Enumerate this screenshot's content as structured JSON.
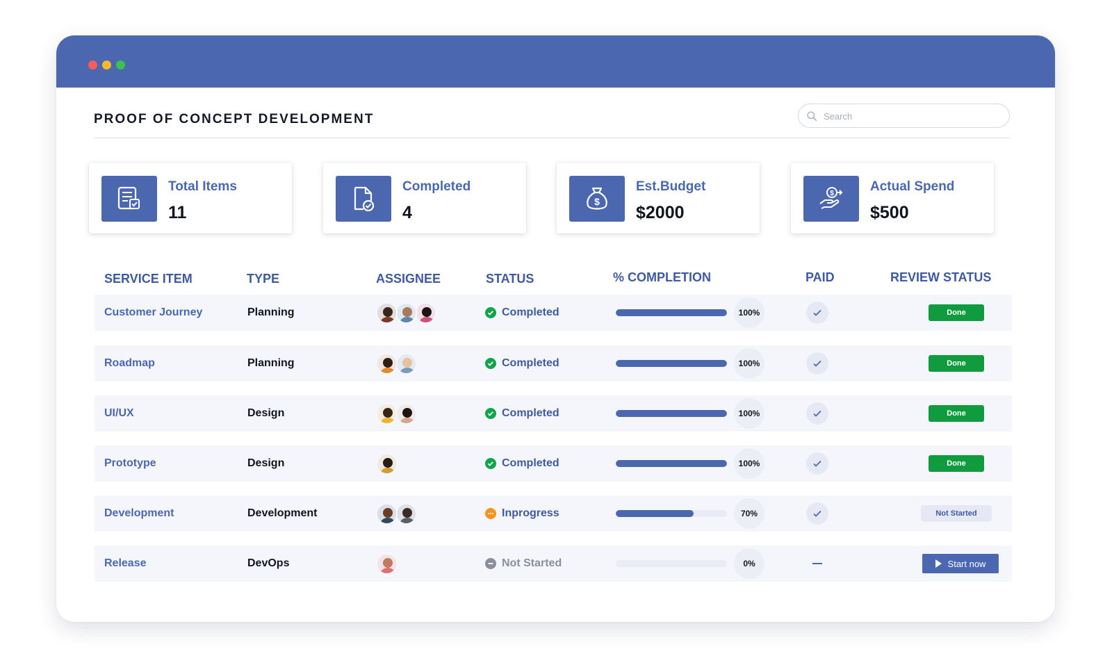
{
  "window": {
    "controls": [
      "close",
      "minimize",
      "maximize"
    ],
    "colors": {
      "titlebar": "#4a67b0",
      "close": "#fd5b5b",
      "minimize": "#f7b92c",
      "maximize": "#3ac34c"
    }
  },
  "header": {
    "title": "PROOF OF CONCEPT DEVELOPMENT",
    "search_placeholder": "Search"
  },
  "cards": [
    {
      "label": "Total Items",
      "value": "11",
      "icon": "document-checklist-icon"
    },
    {
      "label": "Completed",
      "value": "4",
      "icon": "file-check-icon"
    },
    {
      "label": "Est.Budget",
      "value": "$2000",
      "icon": "money-bag-icon"
    },
    {
      "label": "Actual Spend",
      "value": "$500",
      "icon": "hand-dollar-icon"
    }
  ],
  "table": {
    "columns": [
      "SERVICE ITEM",
      "TYPE",
      "ASSIGNEE",
      "STATUS",
      "% COMPLETION",
      "PAID",
      "REVIEW STATUS"
    ],
    "rows": [
      {
        "service": "Customer Journey",
        "type": "Planning",
        "assignees": 3,
        "status": "Completed",
        "completion": 100,
        "completion_label": "100%",
        "paid": true,
        "review": "Done"
      },
      {
        "service": "Roadmap",
        "type": "Planning",
        "assignees": 2,
        "status": "Completed",
        "completion": 100,
        "completion_label": "100%",
        "paid": true,
        "review": "Done"
      },
      {
        "service": "UI/UX",
        "type": "Design",
        "assignees": 2,
        "status": "Completed",
        "completion": 100,
        "completion_label": "100%",
        "paid": true,
        "review": "Done"
      },
      {
        "service": "Prototype",
        "type": "Design",
        "assignees": 1,
        "status": "Completed",
        "completion": 100,
        "completion_label": "100%",
        "paid": true,
        "review": "Done"
      },
      {
        "service": "Development",
        "type": "Development",
        "assignees": 2,
        "status": "Inprogress",
        "completion": 70,
        "completion_label": "70%",
        "paid": true,
        "review": "Not Started"
      },
      {
        "service": "Release",
        "type": "DevOps",
        "assignees": 1,
        "status": "Not Started",
        "completion": 0,
        "completion_label": "0%",
        "paid": false,
        "review": "Start now"
      }
    ]
  },
  "colors": {
    "accent": "#4a67b0",
    "completed": "#10a54a",
    "inprogress": "#f7931e",
    "not_started": "#8a8f9c",
    "done_button": "#109b3f"
  }
}
